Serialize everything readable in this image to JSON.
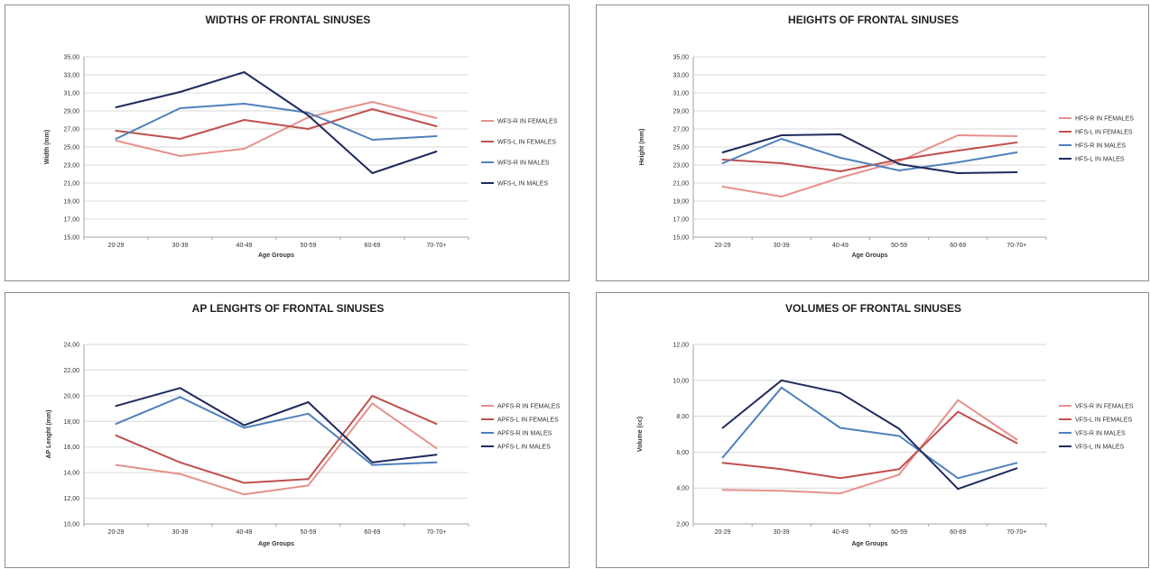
{
  "chart_data": [
    {
      "type": "line",
      "title": "WIDTHS OF FRONTAL SINUSES",
      "xlabel": "Age Groups",
      "ylabel": "Width (mm)",
      "ylim": [
        15,
        35
      ],
      "ystep": 2,
      "categories": [
        "20-29",
        "30-39",
        "40-49",
        "50-59",
        "60-69",
        "70-70+"
      ],
      "yticks": [
        "15,00",
        "17,00",
        "19,00",
        "21,00",
        "23,00",
        "25,00",
        "27,00",
        "29,00",
        "31,00",
        "33,00",
        "35,00"
      ],
      "grid": true,
      "legend": "right",
      "series": [
        {
          "name": "WFS-R IN FEMALES",
          "color": "#e6918c",
          "values": [
            25.7,
            24.0,
            24.8,
            28.3,
            30.0,
            28.2
          ]
        },
        {
          "name": "WFS-L IN FEMALES",
          "color": "#c0504d",
          "values": [
            26.8,
            25.9,
            28.0,
            27.0,
            29.2,
            27.3
          ]
        },
        {
          "name": "WFS-R IN MALES",
          "color": "#4f81bd",
          "values": [
            25.9,
            29.3,
            29.8,
            28.8,
            25.8,
            26.2
          ]
        },
        {
          "name": "WFS-L IN MALES",
          "color": "#1f2a5e",
          "values": [
            29.4,
            31.1,
            33.3,
            28.5,
            22.1,
            24.5
          ]
        }
      ]
    },
    {
      "type": "line",
      "title": "HEIGHTS OF FRONTAL SINUSES",
      "xlabel": "Age Groups",
      "ylabel": "Height (mm)",
      "ylim": [
        15,
        35
      ],
      "ystep": 2,
      "categories": [
        "20-29",
        "30-39",
        "40-49",
        "50-59",
        "60-69",
        "70-70+"
      ],
      "yticks": [
        "15,00",
        "17,00",
        "19,00",
        "21,00",
        "23,00",
        "25,00",
        "27,00",
        "29,00",
        "31,00",
        "33,00",
        "35,00"
      ],
      "grid": true,
      "legend": "right",
      "series": [
        {
          "name": "HFS-R IN FEMALES",
          "color": "#e6918c",
          "values": [
            20.6,
            19.5,
            21.6,
            23.4,
            26.3,
            26.2
          ]
        },
        {
          "name": "HFS-L IN FEMALES",
          "color": "#c0504d",
          "values": [
            23.6,
            23.2,
            22.3,
            23.6,
            24.6,
            25.5
          ]
        },
        {
          "name": "HFS-R IN MALES",
          "color": "#4f81bd",
          "values": [
            23.2,
            25.9,
            23.8,
            22.4,
            23.3,
            24.4
          ]
        },
        {
          "name": "HFS-L IN MALES",
          "color": "#1f2a5e",
          "values": [
            24.4,
            26.3,
            26.4,
            23.1,
            22.1,
            22.2
          ]
        }
      ]
    },
    {
      "type": "line",
      "title": "AP LENGHTS OF FRONTAL SINUSES",
      "xlabel": "Age Groups",
      "ylabel": "AP Lenght (mm)",
      "ylim": [
        10,
        24
      ],
      "ystep": 2,
      "categories": [
        "20-29",
        "30-39",
        "40-49",
        "50-59",
        "60-69",
        "70-70+"
      ],
      "yticks": [
        "10,00",
        "12,00",
        "14,00",
        "16,00",
        "18,00",
        "20,00",
        "22,00",
        "24,00"
      ],
      "grid": true,
      "legend": "right",
      "series": [
        {
          "name": "APFS-R IN FEMALES",
          "color": "#e6918c",
          "values": [
            14.6,
            13.9,
            12.3,
            13.0,
            19.4,
            15.9
          ]
        },
        {
          "name": "APFS-L IN FEMALES",
          "color": "#c0504d",
          "values": [
            16.9,
            14.8,
            13.2,
            13.5,
            20.0,
            17.8
          ]
        },
        {
          "name": "APFS-R IN MALES",
          "color": "#4f81bd",
          "values": [
            17.8,
            19.9,
            17.5,
            18.6,
            14.6,
            14.8
          ]
        },
        {
          "name": "APFS-L IN MALES",
          "color": "#1f2a5e",
          "values": [
            19.2,
            20.6,
            17.7,
            19.5,
            14.8,
            15.4
          ]
        }
      ]
    },
    {
      "type": "line",
      "title": "VOLUMES OF FRONTAL SINUSES",
      "xlabel": "Age Groups",
      "ylabel": "Volume (cc)",
      "ylim": [
        2,
        12
      ],
      "ystep": 2,
      "categories": [
        "20-29",
        "30-39",
        "40-49",
        "50-59",
        "60-69",
        "70-70+"
      ],
      "yticks": [
        "2,00",
        "4,00",
        "6,00",
        "8,00",
        "10,00",
        "12,00"
      ],
      "grid": true,
      "legend": "right",
      "series": [
        {
          "name": "VFS-R IN FEMALES",
          "color": "#e6918c",
          "values": [
            3.9,
            3.85,
            3.7,
            4.75,
            8.9,
            6.7
          ]
        },
        {
          "name": "VFS-L IN FEMALES",
          "color": "#c0504d",
          "values": [
            5.4,
            5.05,
            4.55,
            5.05,
            8.25,
            6.5
          ]
        },
        {
          "name": "VFS-R IN MALES",
          "color": "#4f81bd",
          "values": [
            5.7,
            9.6,
            7.35,
            6.9,
            4.55,
            5.4
          ]
        },
        {
          "name": "VFS-L IN MALES",
          "color": "#1f2a5e",
          "values": [
            7.35,
            10.0,
            9.3,
            7.3,
            3.95,
            5.1
          ]
        }
      ]
    }
  ]
}
